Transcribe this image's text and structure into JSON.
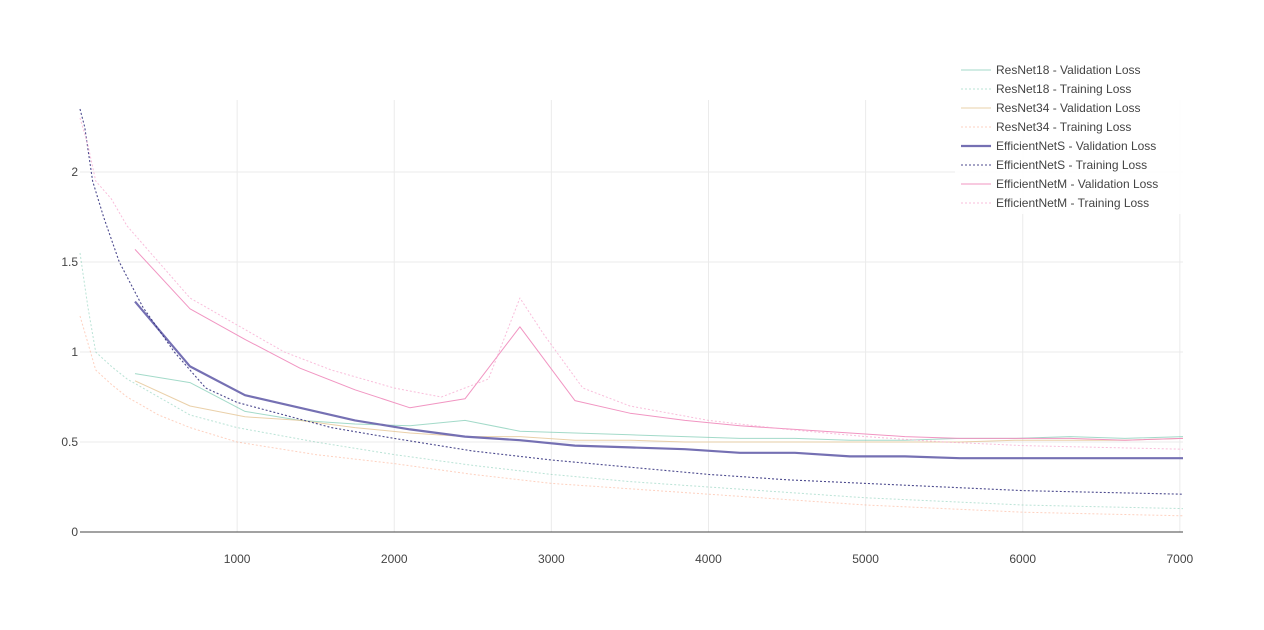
{
  "chart_data": {
    "type": "line",
    "title": "",
    "xlabel": "",
    "ylabel": "",
    "xlim": [
      0,
      7020
    ],
    "ylim": [
      0,
      2.4
    ],
    "x_ticks": [
      1000,
      2000,
      3000,
      4000,
      5000,
      6000,
      7000
    ],
    "x_tick_labels": [
      "1000",
      "2000",
      "3000",
      "4000",
      "5000",
      "6000",
      "7000"
    ],
    "y_ticks": [
      0,
      0.5,
      1,
      1.5,
      2
    ],
    "y_tick_labels": [
      "0",
      "0.5",
      "1",
      "1.5",
      "2"
    ],
    "grid": true,
    "legend_position": "top-right",
    "series": [
      {
        "name": "ResNet18 - Validation Loss",
        "color": "#66c2a5",
        "dash": "solid",
        "width": 1,
        "opacity": 0.6,
        "x": [
          350,
          700,
          1050,
          1400,
          1750,
          2100,
          2450,
          2800,
          3150,
          3500,
          3850,
          4200,
          4550,
          4900,
          5250,
          5600,
          5950,
          6300,
          6650,
          7020
        ],
        "y": [
          0.88,
          0.83,
          0.67,
          0.62,
          0.6,
          0.59,
          0.62,
          0.56,
          0.55,
          0.54,
          0.53,
          0.52,
          0.52,
          0.51,
          0.51,
          0.52,
          0.52,
          0.53,
          0.52,
          0.53
        ]
      },
      {
        "name": "ResNet18 - Training Loss",
        "color": "#66c2a5",
        "dash": "dot",
        "width": 1,
        "opacity": 0.45,
        "x": [
          0,
          50,
          100,
          200,
          300,
          500,
          700,
          1000,
          1500,
          2000,
          2500,
          3000,
          3500,
          4000,
          4500,
          5000,
          5500,
          6000,
          6500,
          7020
        ],
        "y": [
          1.55,
          1.25,
          1.0,
          0.92,
          0.85,
          0.75,
          0.65,
          0.58,
          0.5,
          0.43,
          0.37,
          0.32,
          0.28,
          0.25,
          0.22,
          0.19,
          0.17,
          0.15,
          0.14,
          0.13
        ]
      },
      {
        "name": "ResNet34 - Validation Loss",
        "color": "#e5c494",
        "dash": "solid",
        "width": 1,
        "opacity": 0.8,
        "x": [
          350,
          700,
          1050,
          1400,
          1750,
          2100,
          2450,
          2800,
          3150,
          3500,
          3850,
          4200,
          4550,
          4900,
          5250,
          5600,
          5950,
          6300,
          6650,
          7020
        ],
        "y": [
          0.84,
          0.7,
          0.64,
          0.62,
          0.58,
          0.55,
          0.53,
          0.53,
          0.51,
          0.51,
          0.5,
          0.5,
          0.5,
          0.5,
          0.5,
          0.5,
          0.51,
          0.51,
          0.51,
          0.52
        ]
      },
      {
        "name": "ResNet34 - Training Loss",
        "color": "#fc8d62",
        "dash": "dot",
        "width": 1,
        "opacity": 0.4,
        "x": [
          0,
          50,
          100,
          200,
          300,
          500,
          700,
          1000,
          1500,
          2000,
          2500,
          3000,
          3500,
          4000,
          4500,
          5000,
          5500,
          6000,
          6500,
          7020
        ],
        "y": [
          1.2,
          1.05,
          0.9,
          0.82,
          0.75,
          0.65,
          0.58,
          0.5,
          0.43,
          0.38,
          0.32,
          0.27,
          0.24,
          0.21,
          0.18,
          0.15,
          0.13,
          0.11,
          0.1,
          0.09
        ]
      },
      {
        "name": "EfficientNetS - Validation Loss",
        "color": "#7570b3",
        "dash": "solid",
        "width": 2.2,
        "opacity": 1,
        "x": [
          350,
          700,
          1050,
          1400,
          1750,
          2100,
          2450,
          2800,
          3150,
          3500,
          3850,
          4200,
          4550,
          4900,
          5250,
          5600,
          5950,
          6300,
          6650,
          7020
        ],
        "y": [
          1.28,
          0.92,
          0.76,
          0.69,
          0.62,
          0.57,
          0.53,
          0.51,
          0.48,
          0.47,
          0.46,
          0.44,
          0.44,
          0.42,
          0.42,
          0.41,
          0.41,
          0.41,
          0.41,
          0.41
        ]
      },
      {
        "name": "EfficientNetS - Training Loss",
        "color": "#2d2a7a",
        "dash": "dot",
        "width": 1.1,
        "opacity": 0.85,
        "x": [
          0,
          30,
          80,
          150,
          250,
          400,
          600,
          800,
          1000,
          1300,
          1600,
          2000,
          2500,
          3000,
          3500,
          4000,
          4500,
          5000,
          5500,
          6000,
          6500,
          7020
        ],
        "y": [
          2.35,
          2.25,
          1.95,
          1.75,
          1.5,
          1.25,
          1.0,
          0.8,
          0.72,
          0.65,
          0.58,
          0.52,
          0.45,
          0.4,
          0.36,
          0.32,
          0.29,
          0.27,
          0.25,
          0.23,
          0.22,
          0.21
        ]
      },
      {
        "name": "EfficientNetM - Validation Loss",
        "color": "#f08fbf",
        "dash": "solid",
        "width": 1,
        "opacity": 0.95,
        "x": [
          350,
          700,
          1050,
          1400,
          1750,
          2100,
          2450,
          2800,
          3150,
          3500,
          3850,
          4200,
          4550,
          4900,
          5250,
          5600,
          5950,
          6300,
          6650,
          7020
        ],
        "y": [
          1.57,
          1.24,
          1.07,
          0.91,
          0.79,
          0.69,
          0.74,
          1.14,
          0.73,
          0.66,
          0.62,
          0.59,
          0.57,
          0.55,
          0.53,
          0.52,
          0.52,
          0.52,
          0.51,
          0.52
        ]
      },
      {
        "name": "EfficientNetM - Training Loss",
        "color": "#f7a8cf",
        "dash": "dot",
        "width": 1,
        "opacity": 0.75,
        "x": [
          0,
          50,
          100,
          200,
          300,
          500,
          700,
          1000,
          1300,
          1600,
          2000,
          2300,
          2600,
          2800,
          2950,
          3200,
          3500,
          4000,
          4500,
          5000,
          5500,
          6000,
          6500,
          7020
        ],
        "y": [
          2.3,
          2.15,
          1.95,
          1.85,
          1.7,
          1.5,
          1.3,
          1.15,
          1.0,
          0.9,
          0.8,
          0.75,
          0.85,
          1.3,
          1.1,
          0.8,
          0.7,
          0.62,
          0.57,
          0.53,
          0.5,
          0.48,
          0.47,
          0.46
        ]
      }
    ]
  }
}
